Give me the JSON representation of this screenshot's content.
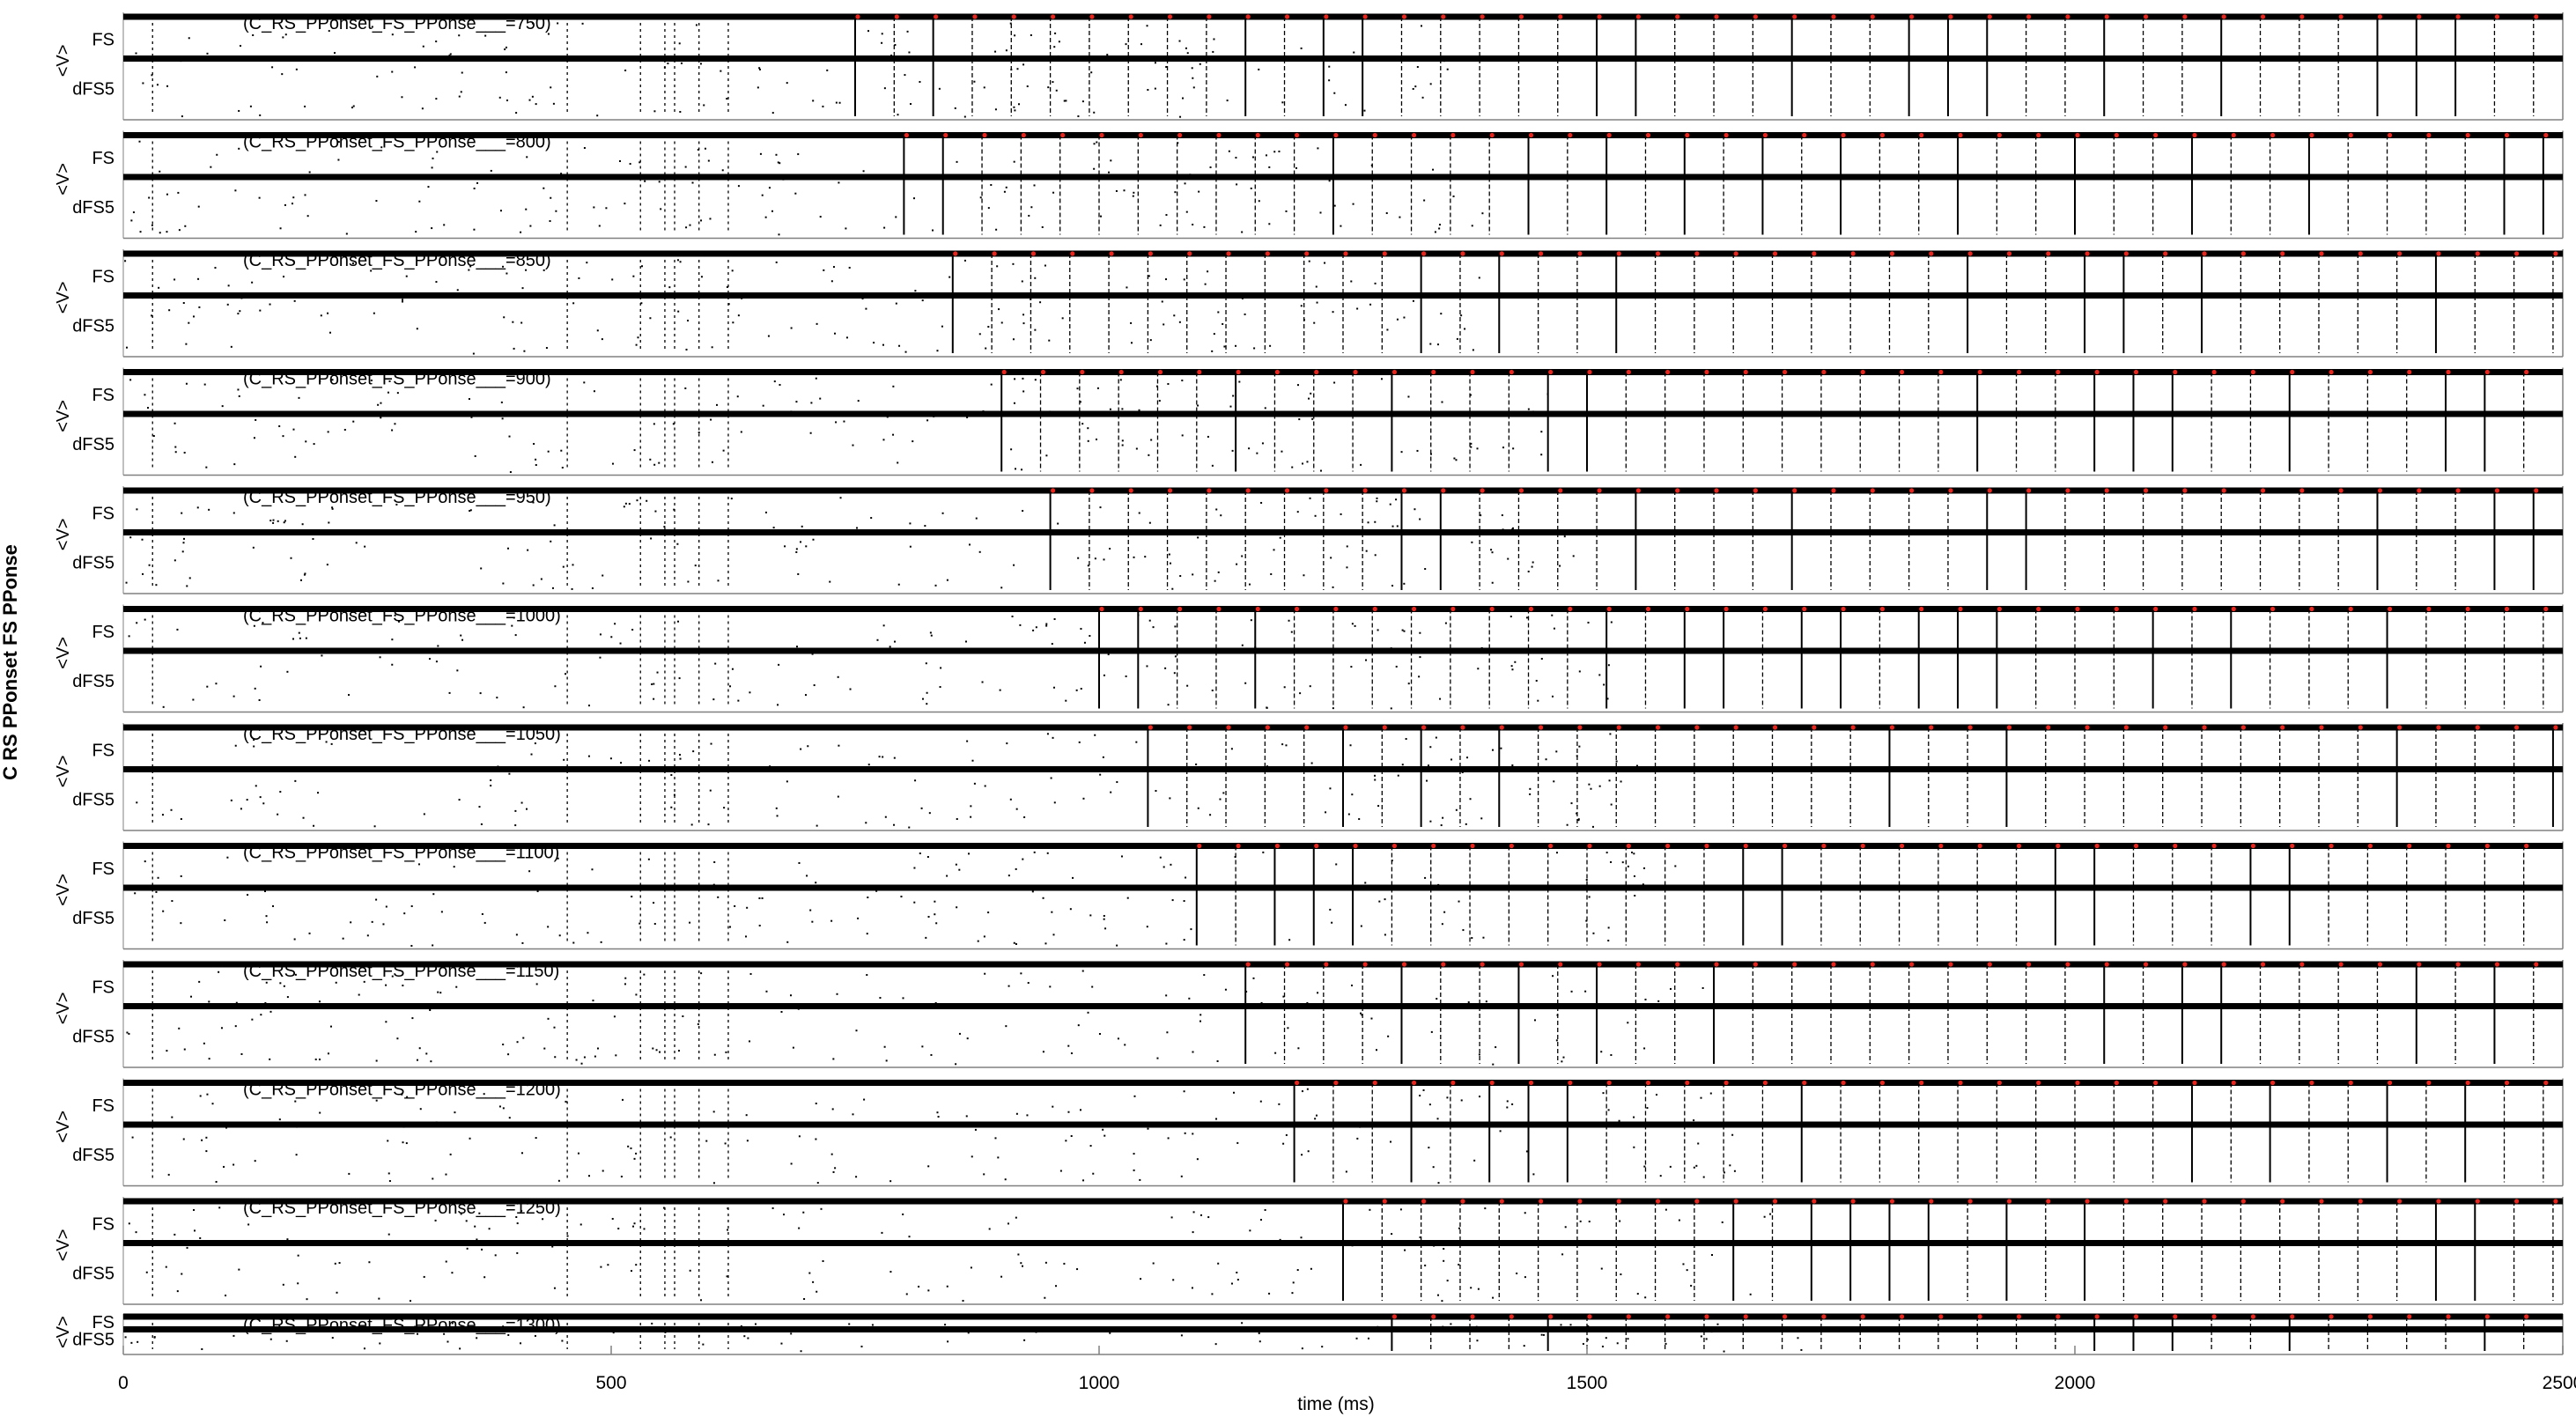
{
  "chart_data": {
    "type": "scatter",
    "xlabel": "time (ms)",
    "xlim": [
      0,
      2500
    ],
    "xticks": [
      "0",
      "500",
      "1000",
      "1500",
      "2000",
      "2500"
    ],
    "ylabel": "C RS PPonset FS PPonse",
    "row_labels": [
      "FS",
      "dFS5"
    ],
    "axis_label": "<V>",
    "panels": [
      {
        "title": "(C_RS_PPonset_FS_PPonse___=750)",
        "onset": 750
      },
      {
        "title": "(C_RS_PPonset_FS_PPonse___=800)",
        "onset": 800
      },
      {
        "title": "(C_RS_PPonset_FS_PPonse___=850)",
        "onset": 850
      },
      {
        "title": "(C_RS_PPonset_FS_PPonse___=900)",
        "onset": 900
      },
      {
        "title": "(C_RS_PPonset_FS_PPonse___=950)",
        "onset": 950
      },
      {
        "title": "(C_RS_PPonset_FS_PPonse___=1000)",
        "onset": 1000
      },
      {
        "title": "(C_RS_PPonset_FS_PPonse___=1050)",
        "onset": 1050
      },
      {
        "title": "(C_RS_PPonset_FS_PPonse___=1100)",
        "onset": 1100
      },
      {
        "title": "(C_RS_PPonset_FS_PPonse___=1150)",
        "onset": 1150
      },
      {
        "title": "(C_RS_PPonset_FS_PPonse___=1200)",
        "onset": 1200
      },
      {
        "title": "(C_RS_PPonset_FS_PPonse___=1250)",
        "onset": 1250
      },
      {
        "title": "(C_RS_PPonset_FS_PPonse___=1300)",
        "onset": 1300
      }
    ],
    "background_burst_times_ms": [
      30,
      455,
      530,
      555,
      565,
      590,
      620
    ],
    "rhythm_period_ms": 40,
    "colors": {
      "raster": "#000000",
      "marker": "#e8261e",
      "axis": "#808080"
    }
  }
}
